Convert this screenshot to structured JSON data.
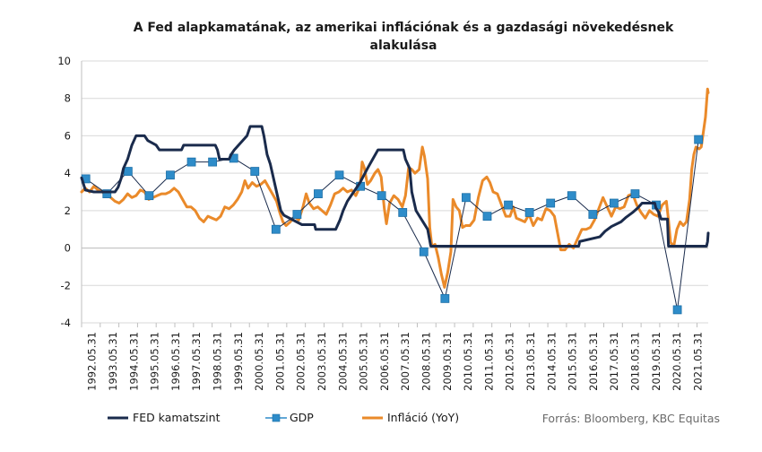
{
  "chart_data": {
    "type": "line",
    "title_lines": [
      "A Fed alapkamatának, az amerikai inflációnak és a gazdasági növekedésnek",
      "alakulása"
    ],
    "x_start": 1992.42,
    "x_end": 2022.08,
    "x_ticks": [
      "1992.05.31",
      "1993.05.31",
      "1994.05.31",
      "1995.05.31",
      "1996.05.31",
      "1997.05.31",
      "1998.05.31",
      "1999.05.31",
      "2000.05.31",
      "2001.05.31",
      "2002.05.31",
      "2003.05.31",
      "2004.05.31",
      "2005.05.31",
      "2006.05.31",
      "2007.05.31",
      "2008.05.31",
      "2009.05.31",
      "2010.05.31",
      "2011.05.31",
      "2012.05.31",
      "2013.05.31",
      "2014.05.31",
      "2015.05.31",
      "2016.05.31",
      "2017.05.31",
      "2018.05.31",
      "2019.05.31",
      "2020.05.31",
      "2021.05.31"
    ],
    "ylim": [
      -4,
      10
    ],
    "y_ticks": [
      -4,
      -2,
      0,
      2,
      4,
      6,
      8,
      10
    ],
    "grid": true,
    "series": [
      {
        "name": "FED kamatszint",
        "color": "#1a2b4c",
        "marker": "none",
        "points": [
          [
            1992.42,
            3.75
          ],
          [
            1992.6,
            3.1
          ],
          [
            1993.0,
            3.0
          ],
          [
            1994.0,
            3.0
          ],
          [
            1994.15,
            3.25
          ],
          [
            1994.3,
            3.75
          ],
          [
            1994.4,
            4.25
          ],
          [
            1994.6,
            4.75
          ],
          [
            1994.8,
            5.5
          ],
          [
            1995.0,
            6.0
          ],
          [
            1995.4,
            6.0
          ],
          [
            1995.55,
            5.75
          ],
          [
            1995.95,
            5.5
          ],
          [
            1996.1,
            5.25
          ],
          [
            1997.15,
            5.25
          ],
          [
            1997.25,
            5.5
          ],
          [
            1998.75,
            5.5
          ],
          [
            1998.85,
            5.25
          ],
          [
            1998.95,
            4.75
          ],
          [
            1999.4,
            4.75
          ],
          [
            1999.5,
            5.0
          ],
          [
            1999.65,
            5.25
          ],
          [
            1999.85,
            5.5
          ],
          [
            2000.05,
            5.75
          ],
          [
            2000.25,
            6.0
          ],
          [
            2000.4,
            6.5
          ],
          [
            2000.95,
            6.5
          ],
          [
            2001.05,
            6.0
          ],
          [
            2001.2,
            5.0
          ],
          [
            2001.35,
            4.5
          ],
          [
            2001.5,
            3.75
          ],
          [
            2001.65,
            3.0
          ],
          [
            2001.85,
            2.0
          ],
          [
            2002.0,
            1.75
          ],
          [
            2002.85,
            1.25
          ],
          [
            2003.45,
            1.25
          ],
          [
            2003.5,
            1.0
          ],
          [
            2004.45,
            1.0
          ],
          [
            2004.55,
            1.25
          ],
          [
            2004.65,
            1.5
          ],
          [
            2004.8,
            2.0
          ],
          [
            2005.0,
            2.5
          ],
          [
            2005.3,
            3.0
          ],
          [
            2005.6,
            3.5
          ],
          [
            2005.95,
            4.25
          ],
          [
            2006.2,
            4.75
          ],
          [
            2006.45,
            5.25
          ],
          [
            2007.65,
            5.25
          ],
          [
            2007.75,
            4.75
          ],
          [
            2007.95,
            4.25
          ],
          [
            2008.05,
            3.0
          ],
          [
            2008.25,
            2.0
          ],
          [
            2008.8,
            1.0
          ],
          [
            2008.95,
            0.1
          ],
          [
            2015.95,
            0.1
          ],
          [
            2016.0,
            0.35
          ],
          [
            2016.95,
            0.6
          ],
          [
            2017.2,
            0.9
          ],
          [
            2017.5,
            1.15
          ],
          [
            2017.95,
            1.4
          ],
          [
            2018.2,
            1.65
          ],
          [
            2018.5,
            1.9
          ],
          [
            2018.75,
            2.15
          ],
          [
            2018.95,
            2.4
          ],
          [
            2019.55,
            2.4
          ],
          [
            2019.6,
            2.15
          ],
          [
            2019.75,
            1.9
          ],
          [
            2019.85,
            1.55
          ],
          [
            2020.15,
            1.55
          ],
          [
            2020.2,
            0.1
          ],
          [
            2022.0,
            0.1
          ],
          [
            2022.05,
            0.35
          ],
          [
            2022.08,
            0.8
          ]
        ]
      },
      {
        "name": "GDP",
        "color": "#2e8cc9",
        "marker": "square",
        "points": [
          [
            1992.62,
            3.7
          ],
          [
            1993.62,
            2.9
          ],
          [
            1994.62,
            4.1
          ],
          [
            1995.62,
            2.8
          ],
          [
            1996.62,
            3.9
          ],
          [
            1997.62,
            4.6
          ],
          [
            1998.62,
            4.6
          ],
          [
            1999.62,
            4.8
          ],
          [
            2000.62,
            4.1
          ],
          [
            2001.62,
            1.0
          ],
          [
            2002.62,
            1.8
          ],
          [
            2003.62,
            2.9
          ],
          [
            2004.62,
            3.9
          ],
          [
            2005.62,
            3.3
          ],
          [
            2006.62,
            2.8
          ],
          [
            2007.62,
            1.9
          ],
          [
            2008.62,
            -0.2
          ],
          [
            2009.62,
            -2.7
          ],
          [
            2010.62,
            2.7
          ],
          [
            2011.62,
            1.7
          ],
          [
            2012.62,
            2.3
          ],
          [
            2013.62,
            1.9
          ],
          [
            2014.62,
            2.4
          ],
          [
            2015.62,
            2.8
          ],
          [
            2016.62,
            1.8
          ],
          [
            2017.62,
            2.4
          ],
          [
            2018.62,
            2.9
          ],
          [
            2019.62,
            2.3
          ],
          [
            2020.62,
            -3.3
          ],
          [
            2021.62,
            5.8
          ]
        ]
      },
      {
        "name": "Infláció (YoY)",
        "color": "#ea8a2a",
        "marker": "none",
        "points": [
          [
            1992.42,
            3.0
          ],
          [
            1992.6,
            3.2
          ],
          [
            1992.8,
            3.0
          ],
          [
            1993.0,
            3.3
          ],
          [
            1993.2,
            3.1
          ],
          [
            1993.4,
            3.0
          ],
          [
            1993.6,
            2.8
          ],
          [
            1993.8,
            2.7
          ],
          [
            1994.0,
            2.5
          ],
          [
            1994.2,
            2.4
          ],
          [
            1994.4,
            2.6
          ],
          [
            1994.6,
            2.9
          ],
          [
            1994.8,
            2.7
          ],
          [
            1995.0,
            2.8
          ],
          [
            1995.2,
            3.1
          ],
          [
            1995.4,
            3.0
          ],
          [
            1995.6,
            2.6
          ],
          [
            1995.8,
            2.7
          ],
          [
            1996.0,
            2.8
          ],
          [
            1996.2,
            2.9
          ],
          [
            1996.4,
            2.9
          ],
          [
            1996.6,
            3.0
          ],
          [
            1996.8,
            3.2
          ],
          [
            1997.0,
            3.0
          ],
          [
            1997.2,
            2.6
          ],
          [
            1997.4,
            2.2
          ],
          [
            1997.6,
            2.2
          ],
          [
            1997.8,
            2.0
          ],
          [
            1998.0,
            1.6
          ],
          [
            1998.2,
            1.4
          ],
          [
            1998.4,
            1.7
          ],
          [
            1998.6,
            1.6
          ],
          [
            1998.8,
            1.5
          ],
          [
            1999.0,
            1.7
          ],
          [
            1999.2,
            2.2
          ],
          [
            1999.4,
            2.1
          ],
          [
            1999.6,
            2.3
          ],
          [
            1999.8,
            2.6
          ],
          [
            2000.0,
            3.0
          ],
          [
            2000.15,
            3.6
          ],
          [
            2000.3,
            3.2
          ],
          [
            2000.5,
            3.5
          ],
          [
            2000.7,
            3.3
          ],
          [
            2000.9,
            3.4
          ],
          [
            2001.1,
            3.6
          ],
          [
            2001.3,
            3.2
          ],
          [
            2001.5,
            2.8
          ],
          [
            2001.65,
            2.5
          ],
          [
            2001.8,
            1.9
          ],
          [
            2001.95,
            1.4
          ],
          [
            2002.1,
            1.2
          ],
          [
            2002.3,
            1.4
          ],
          [
            2002.5,
            1.7
          ],
          [
            2002.7,
            1.5
          ],
          [
            2002.9,
            2.2
          ],
          [
            2003.05,
            2.9
          ],
          [
            2003.2,
            2.4
          ],
          [
            2003.4,
            2.1
          ],
          [
            2003.6,
            2.2
          ],
          [
            2003.8,
            2.0
          ],
          [
            2004.0,
            1.8
          ],
          [
            2004.2,
            2.3
          ],
          [
            2004.4,
            2.9
          ],
          [
            2004.6,
            3.0
          ],
          [
            2004.8,
            3.2
          ],
          [
            2005.0,
            3.0
          ],
          [
            2005.2,
            3.1
          ],
          [
            2005.4,
            2.8
          ],
          [
            2005.6,
            3.3
          ],
          [
            2005.7,
            4.6
          ],
          [
            2005.8,
            4.3
          ],
          [
            2005.95,
            3.4
          ],
          [
            2006.1,
            3.6
          ],
          [
            2006.3,
            4.0
          ],
          [
            2006.45,
            4.2
          ],
          [
            2006.6,
            3.8
          ],
          [
            2006.75,
            2.1
          ],
          [
            2006.85,
            1.3
          ],
          [
            2007.0,
            2.4
          ],
          [
            2007.2,
            2.8
          ],
          [
            2007.4,
            2.6
          ],
          [
            2007.6,
            2.2
          ],
          [
            2007.75,
            2.8
          ],
          [
            2007.9,
            4.3
          ],
          [
            2008.05,
            4.2
          ],
          [
            2008.2,
            4.0
          ],
          [
            2008.4,
            4.2
          ],
          [
            2008.55,
            5.4
          ],
          [
            2008.65,
            4.9
          ],
          [
            2008.8,
            3.7
          ],
          [
            2008.9,
            1.1
          ],
          [
            2009.0,
            0.1
          ],
          [
            2009.15,
            0.2
          ],
          [
            2009.3,
            -0.5
          ],
          [
            2009.45,
            -1.4
          ],
          [
            2009.6,
            -2.1
          ],
          [
            2009.75,
            -1.3
          ],
          [
            2009.9,
            -0.2
          ],
          [
            2010.0,
            2.6
          ],
          [
            2010.15,
            2.2
          ],
          [
            2010.3,
            2.0
          ],
          [
            2010.45,
            1.1
          ],
          [
            2010.6,
            1.2
          ],
          [
            2010.8,
            1.2
          ],
          [
            2011.0,
            1.5
          ],
          [
            2011.2,
            2.7
          ],
          [
            2011.4,
            3.6
          ],
          [
            2011.6,
            3.8
          ],
          [
            2011.75,
            3.5
          ],
          [
            2011.9,
            3.0
          ],
          [
            2012.1,
            2.9
          ],
          [
            2012.3,
            2.3
          ],
          [
            2012.5,
            1.7
          ],
          [
            2012.7,
            1.7
          ],
          [
            2012.85,
            2.2
          ],
          [
            2013.0,
            1.6
          ],
          [
            2013.2,
            1.5
          ],
          [
            2013.4,
            1.4
          ],
          [
            2013.6,
            1.8
          ],
          [
            2013.8,
            1.2
          ],
          [
            2014.0,
            1.6
          ],
          [
            2014.2,
            1.5
          ],
          [
            2014.4,
            2.1
          ],
          [
            2014.6,
            2.0
          ],
          [
            2014.8,
            1.7
          ],
          [
            2014.95,
            0.8
          ],
          [
            2015.1,
            -0.1
          ],
          [
            2015.3,
            -0.1
          ],
          [
            2015.5,
            0.2
          ],
          [
            2015.7,
            0.0
          ],
          [
            2015.9,
            0.5
          ],
          [
            2016.1,
            1.0
          ],
          [
            2016.3,
            1.0
          ],
          [
            2016.5,
            1.1
          ],
          [
            2016.7,
            1.5
          ],
          [
            2016.9,
            2.1
          ],
          [
            2017.1,
            2.7
          ],
          [
            2017.3,
            2.2
          ],
          [
            2017.5,
            1.7
          ],
          [
            2017.7,
            2.2
          ],
          [
            2017.9,
            2.1
          ],
          [
            2018.1,
            2.2
          ],
          [
            2018.3,
            2.8
          ],
          [
            2018.5,
            2.9
          ],
          [
            2018.7,
            2.3
          ],
          [
            2018.9,
            1.9
          ],
          [
            2019.1,
            1.6
          ],
          [
            2019.3,
            2.0
          ],
          [
            2019.5,
            1.8
          ],
          [
            2019.7,
            1.7
          ],
          [
            2019.9,
            2.3
          ],
          [
            2020.1,
            2.5
          ],
          [
            2020.2,
            1.5
          ],
          [
            2020.3,
            0.3
          ],
          [
            2020.45,
            0.1
          ],
          [
            2020.6,
            1.0
          ],
          [
            2020.75,
            1.4
          ],
          [
            2020.9,
            1.2
          ],
          [
            2021.05,
            1.4
          ],
          [
            2021.2,
            2.6
          ],
          [
            2021.3,
            4.2
          ],
          [
            2021.4,
            5.0
          ],
          [
            2021.5,
            5.4
          ],
          [
            2021.65,
            5.3
          ],
          [
            2021.75,
            5.4
          ],
          [
            2021.85,
            6.2
          ],
          [
            2021.95,
            7.0
          ],
          [
            2022.05,
            8.5
          ],
          [
            2022.08,
            8.3
          ]
        ]
      }
    ],
    "legend": {
      "placement": "bottom",
      "entries": [
        "FED kamatszint",
        "GDP",
        "Infláció (YoY)"
      ]
    },
    "source": "Forrás: Bloomberg,  KBC Equitas"
  }
}
